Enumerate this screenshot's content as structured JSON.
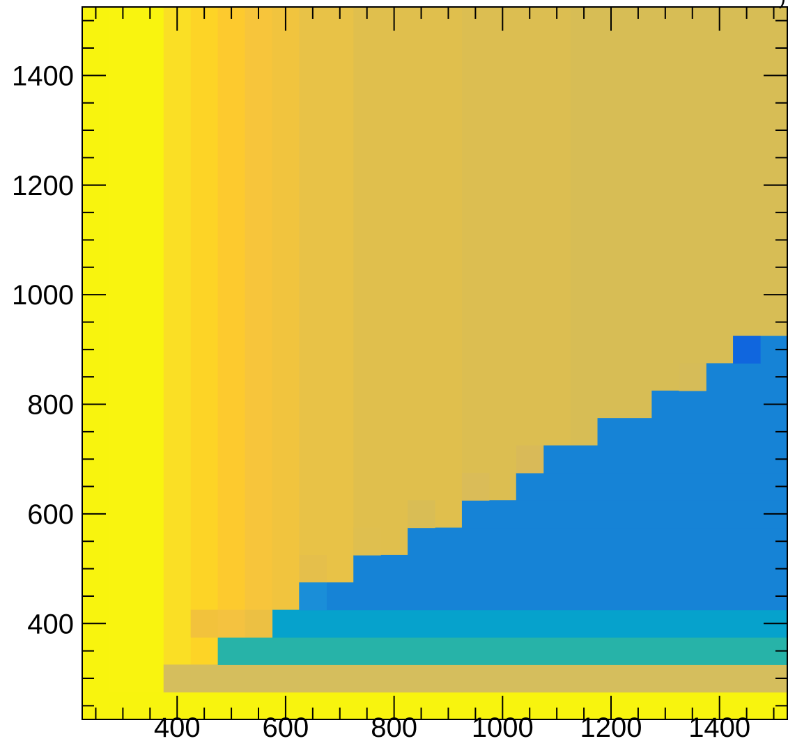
{
  "chart_data": {
    "type": "heatmap",
    "title": "",
    "xlabel": "",
    "ylabel": "",
    "xlim": [
      225,
      1525
    ],
    "ylim": [
      225,
      1525
    ],
    "bin_width": 50,
    "x_bins": [
      275,
      325,
      375,
      425,
      475,
      525,
      575,
      625,
      675,
      725,
      775,
      825,
      875,
      925,
      975,
      1025,
      1075,
      1125,
      1175,
      1225,
      1275,
      1325,
      1375,
      1425,
      1475
    ],
    "x_ticks": [
      400,
      600,
      800,
      1000,
      1200,
      1400
    ],
    "y_ticks": [
      400,
      600,
      800,
      1000,
      1200,
      1400
    ],
    "x_tick_labels": [
      "400",
      "600",
      "800",
      "1000",
      "1200",
      "1400"
    ],
    "y_tick_labels": [
      "400",
      "600",
      "800",
      "1000",
      "1200",
      "1400"
    ],
    "corner_label": ")",
    "grid": false,
    "colors": {
      "background": "#f8f40e",
      "tan": "#d9bd58",
      "blue": "#1683d6",
      "dark_blue": "#1066de",
      "teal": "#27b3a8",
      "cyan": "#06a2cc",
      "frame": "#000000"
    },
    "diagonal_bins": [
      {
        "x_min": 425,
        "y_min": 375,
        "color": "#f2c23c"
      },
      {
        "x_min": 475,
        "y_min": 375,
        "color": "#f4c240"
      },
      {
        "x_min": 525,
        "y_min": 375,
        "color": "#ecc043"
      },
      {
        "x_min": 625,
        "y_min": 475,
        "color": "#e5bf4b"
      },
      {
        "x_min": 725,
        "y_min": 525,
        "color": "#dfbf4f"
      },
      {
        "x_min": 825,
        "y_min": 575,
        "color": "#d9bd55"
      },
      {
        "x_min": 925,
        "y_min": 625,
        "color": "#dabc58"
      },
      {
        "x_min": 1025,
        "y_min": 675,
        "color": "#d9ba58"
      },
      {
        "x_min": 1325,
        "y_min": 825,
        "color": "#d6bc58"
      }
    ],
    "columns": [
      {
        "x_min": 225,
        "x_max": 275,
        "top_color": "#f8f40e"
      },
      {
        "x_min": 275,
        "x_max": 375,
        "top_color": "#f9f40f"
      },
      {
        "x_min": 375,
        "x_max": 425,
        "top_color": "#fadf25"
      },
      {
        "x_min": 425,
        "x_max": 475,
        "top_color": "#fdd426"
      },
      {
        "x_min": 475,
        "x_max": 525,
        "top_color": "#fdca2e"
      },
      {
        "x_min": 525,
        "x_max": 575,
        "top_color": "#f7c53b"
      },
      {
        "x_min": 575,
        "x_max": 625,
        "top_color": "#f1c43e"
      },
      {
        "x_min": 625,
        "x_max": 725,
        "top_color": "#e8c247"
      },
      {
        "x_min": 725,
        "x_max": 925,
        "top_color": "#e0bf4d"
      },
      {
        "x_min": 925,
        "x_max": 1125,
        "top_color": "#dcbe51"
      },
      {
        "x_min": 1125,
        "x_max": 1525,
        "top_color": "#d7bd55"
      }
    ],
    "bottom_band": {
      "y_min": 275,
      "y_max": 325,
      "x_min": 375,
      "x_max": 1525,
      "color": "#d5be5d"
    },
    "teal_band": {
      "y_min": 325,
      "y_max": 375,
      "x_min": 475,
      "x_max": 1525,
      "color": "#27b3a8"
    },
    "cyan_band": {
      "y_min": 375,
      "y_max": 425,
      "x_min": 575,
      "x_max": 1525,
      "color": "#06a2cc"
    },
    "blue_staircase": [
      {
        "y_min": 425,
        "y_max": 475,
        "x_start": 625
      },
      {
        "y_min": 475,
        "y_max": 525,
        "x_start": 725
      },
      {
        "y_min": 525,
        "y_max": 575,
        "x_start": 825
      },
      {
        "y_min": 575,
        "y_max": 625,
        "x_start": 925
      },
      {
        "y_min": 625,
        "y_max": 675,
        "x_start": 1025
      },
      {
        "y_min": 675,
        "y_max": 725,
        "x_start": 1075
      },
      {
        "y_min": 725,
        "y_max": 775,
        "x_start": 1175
      },
      {
        "y_min": 775,
        "y_max": 825,
        "x_start": 1275
      },
      {
        "y_min": 825,
        "y_max": 875,
        "x_start": 1375
      },
      {
        "y_min": 875,
        "y_max": 925,
        "x_start": 1425
      }
    ],
    "highlight_cells": [
      {
        "x_min": 1425,
        "x_max": 1475,
        "y_min": 875,
        "y_max": 925,
        "color": "#1066de"
      },
      {
        "x_min": 625,
        "x_max": 675,
        "y_min": 425,
        "y_max": 475,
        "color": "#1a8ed8"
      }
    ]
  }
}
